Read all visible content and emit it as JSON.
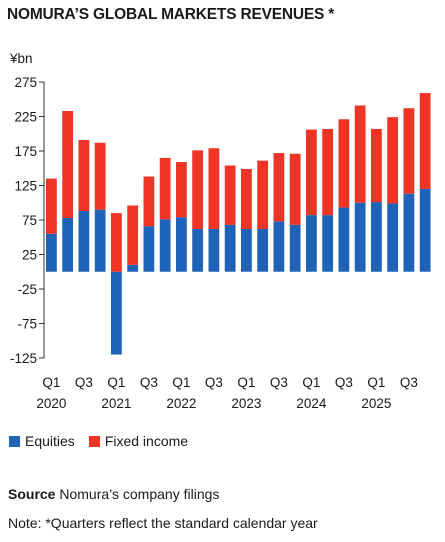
{
  "header": {
    "title": "NOMURA’S GLOBAL MARKETS REVENUES *"
  },
  "colors": {
    "equities": "#1f63b8",
    "fixed_income": "#ee3425",
    "axis": "#333333"
  },
  "chart_data": {
    "type": "bar",
    "stacked": true,
    "unit_label": "¥bn",
    "ylim": [
      -125,
      275
    ],
    "yticks": [
      275,
      225,
      175,
      125,
      75,
      25,
      -25,
      -75,
      -125
    ],
    "grid": false,
    "legend_position": "bottom-left",
    "categories": [
      "Q1 2020",
      "Q2 2020",
      "Q3 2020",
      "Q4 2020",
      "Q1 2021",
      "Q2 2021",
      "Q3 2021",
      "Q4 2021",
      "Q1 2022",
      "Q2 2022",
      "Q3 2022",
      "Q4 2022",
      "Q1 2023",
      "Q2 2023",
      "Q3 2023",
      "Q4 2023",
      "Q1 2024",
      "Q2 2024",
      "Q3 2024",
      "Q4 2024",
      "Q1 2025",
      "Q2 2025",
      "Q3 2025",
      "Q4 2025"
    ],
    "x_tick_labels": [
      {
        "index": 0,
        "quarter": "Q1",
        "year": "2020"
      },
      {
        "index": 2,
        "quarter": "Q3",
        "year": ""
      },
      {
        "index": 4,
        "quarter": "Q1",
        "year": "2021"
      },
      {
        "index": 6,
        "quarter": "Q3",
        "year": ""
      },
      {
        "index": 8,
        "quarter": "Q1",
        "year": "2022"
      },
      {
        "index": 10,
        "quarter": "Q3",
        "year": ""
      },
      {
        "index": 12,
        "quarter": "Q1",
        "year": "2023"
      },
      {
        "index": 14,
        "quarter": "Q3",
        "year": ""
      },
      {
        "index": 16,
        "quarter": "Q1",
        "year": "2024"
      },
      {
        "index": 18,
        "quarter": "Q3",
        "year": ""
      },
      {
        "index": 20,
        "quarter": "Q1",
        "year": "2025"
      },
      {
        "index": 22,
        "quarter": "Q3",
        "year": ""
      }
    ],
    "series": [
      {
        "name": "Equities",
        "color": "#1f63b8",
        "values": [
          55,
          78,
          88,
          90,
          -120,
          10,
          66,
          76,
          79,
          62,
          62,
          68,
          62,
          62,
          73,
          68,
          82,
          82,
          93,
          100,
          101,
          99,
          113,
          120
        ]
      },
      {
        "name": "Fixed income",
        "color": "#ee3425",
        "values": [
          80,
          155,
          103,
          97,
          85,
          86,
          72,
          89,
          80,
          114,
          117,
          86,
          87,
          99,
          99,
          103,
          124,
          125,
          128,
          141,
          106,
          125,
          124,
          139
        ]
      }
    ]
  },
  "footer": {
    "source_label": "Source",
    "source_text": " Nomura’s company filings",
    "note": "Note: *Quarters reflect the standard calendar year"
  }
}
